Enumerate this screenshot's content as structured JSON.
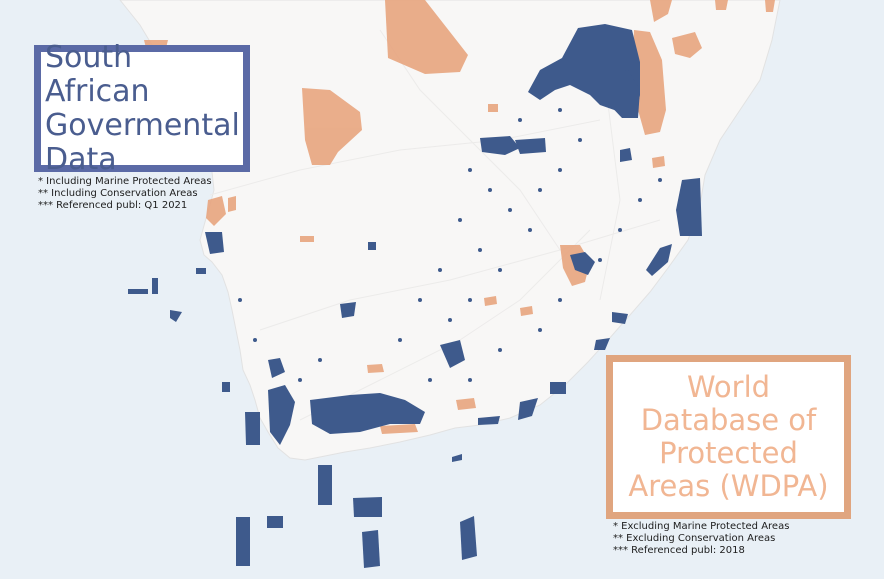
{
  "colors": {
    "ocean": "#e9f0f6",
    "land": "#f8f7f6",
    "sa_protected": "#3e5a8c",
    "wdpa_protected": "#e8a57f",
    "sa_frame": "#5b6aa6",
    "wdpa_frame": "#e0a57f"
  },
  "legend_sa": {
    "title": "South African\nGovermental\nData",
    "notes": [
      "* Including Marine Protected Areas",
      "** Including Conservation Areas",
      "*** Referenced publ: Q1 2021"
    ]
  },
  "legend_wdpa": {
    "title": "World\nDatabase of\nProtected\nAreas (WDPA)",
    "notes": [
      "* Excluding Marine Protected Areas",
      "** Excluding Conservation Areas",
      "*** Referenced publ: 2018"
    ]
  }
}
